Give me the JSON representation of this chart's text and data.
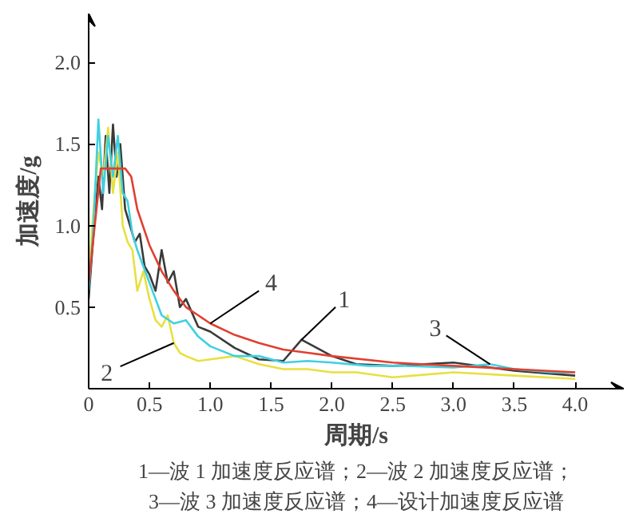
{
  "chart_data": {
    "type": "line",
    "xlabel": "周期/s",
    "ylabel": "加速度/g",
    "xlim": [
      0,
      4.4
    ],
    "ylim": [
      0,
      2.3
    ],
    "xticks": [
      {
        "value": 0,
        "label": "0"
      },
      0.5,
      {
        "value": 1,
        "label": "1.0"
      },
      1.5,
      {
        "value": 2,
        "label": "2.0"
      },
      2.5,
      {
        "value": 3,
        "label": "3.0"
      },
      3.5,
      {
        "value": 4,
        "label": "4.0"
      }
    ],
    "yticks": [
      0.5,
      {
        "value": 1,
        "label": "1.0"
      },
      1.5,
      {
        "value": 2,
        "label": "2.0"
      }
    ],
    "grid": false,
    "marker": "none",
    "series": [
      {
        "color": "#3a3a3a",
        "x": [
          0,
          0.04,
          0.08,
          0.11,
          0.14,
          0.17,
          0.2,
          0.23,
          0.26,
          0.3,
          0.34,
          0.38,
          0.42,
          0.46,
          0.5,
          0.55,
          0.6,
          0.65,
          0.7,
          0.75,
          0.8,
          0.9,
          1.0,
          1.2,
          1.4,
          1.6,
          1.75,
          1.9,
          2.0,
          2.2,
          2.5,
          3.0,
          3.5,
          4.0
        ],
        "values": [
          0.55,
          0.95,
          1.3,
          1.1,
          1.55,
          1.2,
          1.62,
          1.3,
          1.5,
          1.1,
          1.0,
          0.9,
          0.95,
          0.75,
          0.7,
          0.6,
          0.85,
          0.65,
          0.72,
          0.5,
          0.55,
          0.38,
          0.35,
          0.25,
          0.18,
          0.17,
          0.3,
          0.24,
          0.2,
          0.15,
          0.14,
          0.16,
          0.11,
          0.08
        ]
      },
      {
        "color": "#e8e040",
        "x": [
          0,
          0.04,
          0.08,
          0.12,
          0.16,
          0.2,
          0.24,
          0.28,
          0.32,
          0.36,
          0.4,
          0.45,
          0.5,
          0.55,
          0.6,
          0.65,
          0.7,
          0.75,
          0.8,
          0.9,
          1.0,
          1.2,
          1.4,
          1.6,
          1.8,
          2.0,
          2.2,
          2.5,
          3.0,
          3.5,
          4.0
        ],
        "values": [
          0.7,
          1.1,
          1.45,
          1.3,
          1.6,
          1.2,
          1.45,
          1.0,
          0.9,
          0.85,
          0.6,
          0.72,
          0.55,
          0.42,
          0.38,
          0.45,
          0.28,
          0.22,
          0.2,
          0.17,
          0.18,
          0.2,
          0.15,
          0.12,
          0.12,
          0.1,
          0.1,
          0.07,
          0.1,
          0.08,
          0.06
        ]
      },
      {
        "color": "#40d0e0",
        "x": [
          0,
          0.04,
          0.08,
          0.12,
          0.16,
          0.2,
          0.24,
          0.28,
          0.32,
          0.36,
          0.4,
          0.45,
          0.5,
          0.55,
          0.6,
          0.7,
          0.8,
          0.9,
          1.0,
          1.2,
          1.4,
          1.6,
          1.8,
          2.0,
          2.3,
          2.6,
          3.0,
          3.3,
          3.5,
          3.8,
          4.0
        ],
        "values": [
          0.6,
          1.0,
          1.65,
          1.2,
          1.55,
          1.3,
          1.55,
          1.2,
          1.15,
          0.95,
          0.85,
          0.75,
          0.65,
          0.55,
          0.45,
          0.4,
          0.42,
          0.32,
          0.26,
          0.2,
          0.2,
          0.16,
          0.17,
          0.16,
          0.14,
          0.14,
          0.13,
          0.15,
          0.12,
          0.1,
          0.1
        ]
      },
      {
        "color": "#e04030",
        "x": [
          0,
          0.05,
          0.1,
          0.2,
          0.3,
          0.35,
          0.4,
          0.5,
          0.6,
          0.7,
          0.8,
          0.9,
          1.0,
          1.2,
          1.4,
          1.6,
          1.8,
          2.0,
          2.5,
          3.0,
          3.5,
          4.0
        ],
        "values": [
          0.65,
          1.0,
          1.35,
          1.35,
          1.35,
          1.3,
          1.1,
          0.88,
          0.72,
          0.6,
          0.5,
          0.45,
          0.4,
          0.33,
          0.28,
          0.24,
          0.22,
          0.2,
          0.16,
          0.14,
          0.12,
          0.1
        ]
      }
    ],
    "annotations": [
      {
        "text": "1",
        "x": 1.75,
        "y": 0.3
      },
      {
        "text": "2",
        "x": 0.7,
        "y": 0.28
      },
      {
        "text": "3",
        "x": 3.3,
        "y": 0.15
      },
      {
        "text": "4",
        "x": 1.0,
        "y": 0.4
      },
      "1—波 1 加速度反应谱；2—波 2 加速度反应谱；",
      "3—波 3 加速度反应谱；4—设计加速度反应谱"
    ]
  }
}
